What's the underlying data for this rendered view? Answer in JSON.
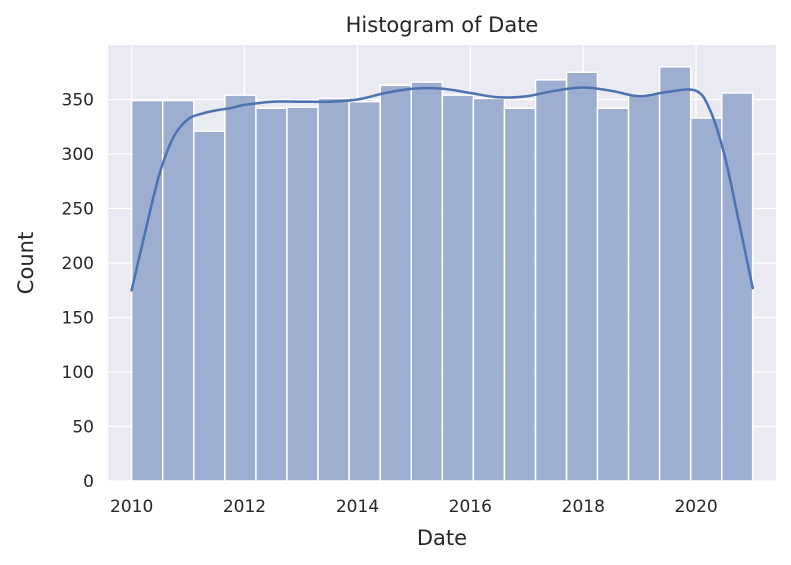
{
  "chart_data": {
    "type": "bar",
    "title": "Histogram of Date",
    "xlabel": "Date",
    "ylabel": "Count",
    "x_range": [
      "2009-08-01",
      "2021-06-01"
    ],
    "ylim": [
      0,
      400
    ],
    "x_ticks": [
      "2010",
      "2012",
      "2014",
      "2016",
      "2018",
      "2020"
    ],
    "y_ticks": [
      "0",
      "50",
      "100",
      "150",
      "200",
      "250",
      "300",
      "350"
    ],
    "grid": true,
    "bar_color": "#9aabce",
    "line_color": "#4c72b0",
    "background_color": "#eaeaf2",
    "bins": [
      {
        "start": "2010-01-01",
        "end": "2010-07-21",
        "count": 349
      },
      {
        "start": "2010-07-21",
        "end": "2011-02-07",
        "count": 349
      },
      {
        "start": "2011-02-07",
        "end": "2011-08-27",
        "count": 321
      },
      {
        "start": "2011-08-27",
        "end": "2012-03-15",
        "count": 354
      },
      {
        "start": "2012-03-15",
        "end": "2012-10-02",
        "count": 342
      },
      {
        "start": "2012-10-02",
        "end": "2013-04-21",
        "count": 343
      },
      {
        "start": "2013-04-21",
        "end": "2013-11-08",
        "count": 351
      },
      {
        "start": "2013-11-08",
        "end": "2014-05-28",
        "count": 348
      },
      {
        "start": "2014-05-28",
        "end": "2014-12-15",
        "count": 363
      },
      {
        "start": "2014-12-15",
        "end": "2015-07-04",
        "count": 366
      },
      {
        "start": "2015-07-04",
        "end": "2016-01-21",
        "count": 354
      },
      {
        "start": "2016-01-21",
        "end": "2016-08-09",
        "count": 351
      },
      {
        "start": "2016-08-09",
        "end": "2017-02-26",
        "count": 342
      },
      {
        "start": "2017-02-26",
        "end": "2017-09-15",
        "count": 368
      },
      {
        "start": "2017-09-15",
        "end": "2018-04-03",
        "count": 375
      },
      {
        "start": "2018-04-03",
        "end": "2018-10-21",
        "count": 342
      },
      {
        "start": "2018-10-21",
        "end": "2019-05-10",
        "count": 355
      },
      {
        "start": "2019-05-10",
        "end": "2019-11-27",
        "count": 380
      },
      {
        "start": "2019-11-27",
        "end": "2020-06-15",
        "count": 333
      },
      {
        "start": "2020-06-15",
        "end": "2021-01-01",
        "count": 356
      }
    ],
    "kde_line": {
      "x": [
        "2010-01-01",
        "2010-04-01",
        "2010-07-01",
        "2010-10-01",
        "2011-01-01",
        "2011-04-01",
        "2011-07-01",
        "2011-10-01",
        "2012-01-01",
        "2012-07-01",
        "2013-01-01",
        "2013-07-01",
        "2014-01-01",
        "2014-07-01",
        "2015-01-01",
        "2015-07-01",
        "2016-01-01",
        "2016-07-01",
        "2017-01-01",
        "2017-07-01",
        "2018-01-01",
        "2018-07-01",
        "2019-01-01",
        "2019-07-01",
        "2020-01-01",
        "2020-04-01",
        "2020-07-01",
        "2020-10-01",
        "2021-01-01"
      ],
      "y": [
        175,
        230,
        282,
        316,
        332,
        337,
        340,
        342,
        345,
        348,
        348,
        348,
        350,
        356,
        360,
        360,
        356,
        352,
        353,
        358,
        361,
        358,
        353,
        357,
        358,
        340,
        300,
        240,
        177
      ]
    }
  }
}
